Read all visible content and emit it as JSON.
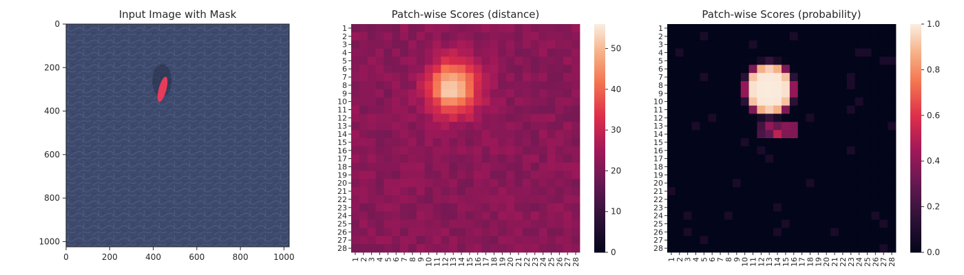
{
  "chart_data": [
    {
      "type": "image",
      "title": "Input Image with Mask",
      "xlim": [
        0,
        1024
      ],
      "ylim": [
        1024,
        0
      ],
      "x_ticks": [
        "0",
        "200",
        "400",
        "600",
        "800",
        "1000"
      ],
      "y_ticks": [
        "0",
        "200",
        "400",
        "600",
        "800",
        "1000"
      ],
      "x_tick_values": [
        0,
        200,
        400,
        600,
        800,
        1000
      ],
      "y_tick_values": [
        0,
        200,
        400,
        600,
        800,
        1000
      ],
      "colors": {
        "background": "#3e4a6d",
        "mask": "#e83b5c"
      },
      "mask_region": {
        "x": [
          425,
          460
        ],
        "y": [
          240,
          360
        ]
      }
    },
    {
      "type": "heatmap",
      "title": "Patch-wise Scores (distance)",
      "grid_size": 28,
      "x_ticks": [
        "1",
        "2",
        "3",
        "4",
        "5",
        "6",
        "7",
        "8",
        "9",
        "10",
        "11",
        "12",
        "13",
        "14",
        "15",
        "16",
        "17",
        "18",
        "19",
        "20",
        "21",
        "22",
        "23",
        "24",
        "25",
        "26",
        "27",
        "28"
      ],
      "y_ticks": [
        "1",
        "2",
        "3",
        "4",
        "5",
        "6",
        "7",
        "8",
        "9",
        "10",
        "11",
        "12",
        "13",
        "14",
        "15",
        "16",
        "17",
        "18",
        "19",
        "20",
        "21",
        "22",
        "23",
        "24",
        "25",
        "26",
        "27",
        "28"
      ],
      "colorbar_range": [
        0,
        56
      ],
      "colorbar_ticks": [
        "0",
        "10",
        "20",
        "30",
        "40",
        "50"
      ],
      "colorbar_tick_values": [
        0,
        10,
        20,
        30,
        40,
        50
      ],
      "colormap": "rocket",
      "hotspot": {
        "center_row": 8.3,
        "center_col": 13,
        "peak": 56,
        "baseline": 22
      }
    },
    {
      "type": "heatmap",
      "title": "Patch-wise Scores (probability)",
      "grid_size": 28,
      "x_ticks": [
        "1",
        "2",
        "3",
        "4",
        "5",
        "6",
        "7",
        "8",
        "9",
        "10",
        "11",
        "12",
        "13",
        "14",
        "15",
        "16",
        "17",
        "18",
        "19",
        "20",
        "21",
        "22",
        "23",
        "24",
        "25",
        "26",
        "27",
        "28"
      ],
      "y_ticks": [
        "1",
        "2",
        "3",
        "4",
        "5",
        "6",
        "7",
        "8",
        "9",
        "10",
        "11",
        "12",
        "13",
        "14",
        "15",
        "16",
        "17",
        "18",
        "19",
        "20",
        "21",
        "22",
        "23",
        "24",
        "25",
        "26",
        "27",
        "28"
      ],
      "colorbar_range": [
        0,
        1
      ],
      "colorbar_ticks": [
        "0.0",
        "0.2",
        "0.4",
        "0.6",
        "0.8",
        "1.0"
      ],
      "colorbar_tick_values": [
        0,
        0.2,
        0.4,
        0.6,
        0.8,
        1.0
      ],
      "colormap": "rocket",
      "hotspot": {
        "center_row": 8.5,
        "center_col": 13,
        "peak": 1.0,
        "baseline": 0.0
      }
    }
  ]
}
